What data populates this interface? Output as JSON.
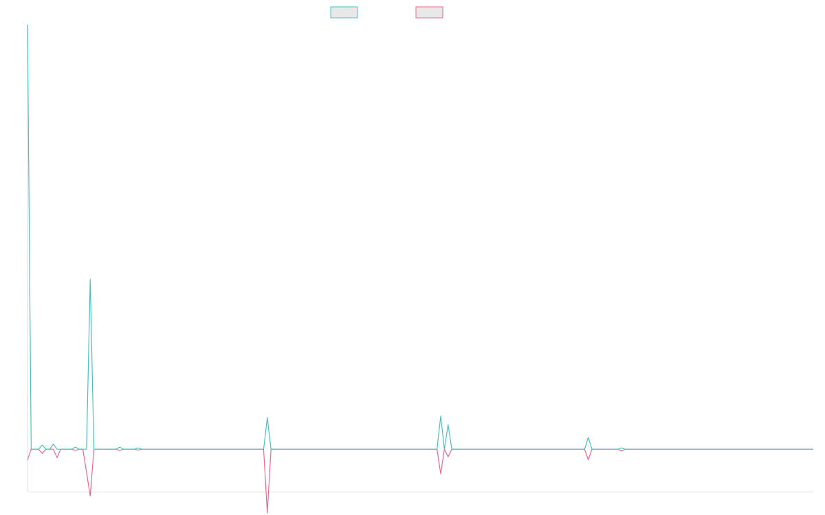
{
  "colors": {
    "teal": "#4bbfbf",
    "pink": "#f0648c",
    "legend_fill": "#e8e8e8",
    "axis": "#dddddd"
  },
  "legend": [
    {
      "name": "",
      "color": "#4bbfbf"
    },
    {
      "name": "",
      "color": "#f0648c"
    }
  ],
  "chart_data": {
    "type": "line",
    "title": "",
    "xlabel": "",
    "ylabel": "",
    "grid": false,
    "legend_position": "top-center",
    "xlim": [
      0,
      213
    ],
    "ylim": [
      -100,
      1000
    ],
    "series": [
      {
        "color": "#4bbfbf",
        "points": [
          [
            0,
            1000
          ],
          [
            1,
            0
          ],
          [
            2,
            0
          ],
          [
            3,
            0
          ],
          [
            4,
            10
          ],
          [
            5,
            0
          ],
          [
            6,
            0
          ],
          [
            7,
            12
          ],
          [
            8,
            0
          ],
          [
            9,
            0
          ],
          [
            10,
            0
          ],
          [
            11,
            0
          ],
          [
            12,
            0
          ],
          [
            13,
            5
          ],
          [
            14,
            0
          ],
          [
            15,
            0
          ],
          [
            16,
            0
          ],
          [
            17,
            400
          ],
          [
            18,
            0
          ],
          [
            19,
            0
          ],
          [
            24,
            0
          ],
          [
            25,
            5
          ],
          [
            26,
            0
          ],
          [
            29,
            0
          ],
          [
            30,
            3
          ],
          [
            31,
            0
          ],
          [
            64,
            0
          ],
          [
            65,
            75
          ],
          [
            66,
            0
          ],
          [
            111,
            0
          ],
          [
            112,
            78
          ],
          [
            113,
            0
          ],
          [
            114,
            58
          ],
          [
            115,
            0
          ],
          [
            151,
            0
          ],
          [
            152,
            28
          ],
          [
            153,
            0
          ],
          [
            160,
            0
          ],
          [
            161,
            3
          ],
          [
            162,
            0
          ],
          [
            213,
            0
          ]
        ]
      },
      {
        "color": "#f0648c",
        "points": [
          [
            0,
            -25
          ],
          [
            1,
            0
          ],
          [
            2,
            0
          ],
          [
            3,
            0
          ],
          [
            4,
            -10
          ],
          [
            5,
            0
          ],
          [
            6,
            0
          ],
          [
            7,
            0
          ],
          [
            8,
            -20
          ],
          [
            9,
            0
          ],
          [
            10,
            0
          ],
          [
            11,
            0
          ],
          [
            12,
            0
          ],
          [
            13,
            -3
          ],
          [
            14,
            0
          ],
          [
            15,
            0
          ],
          [
            16,
            -55
          ],
          [
            17,
            -110
          ],
          [
            18,
            0
          ],
          [
            19,
            0
          ],
          [
            24,
            0
          ],
          [
            25,
            -3
          ],
          [
            26,
            0
          ],
          [
            29,
            0
          ],
          [
            30,
            -2
          ],
          [
            31,
            0
          ],
          [
            64,
            0
          ],
          [
            65,
            -150
          ],
          [
            66,
            0
          ],
          [
            111,
            0
          ],
          [
            112,
            -58
          ],
          [
            113,
            0
          ],
          [
            114,
            -18
          ],
          [
            115,
            0
          ],
          [
            151,
            0
          ],
          [
            152,
            -25
          ],
          [
            153,
            0
          ],
          [
            160,
            0
          ],
          [
            161,
            -4
          ],
          [
            162,
            0
          ],
          [
            213,
            0
          ]
        ]
      }
    ]
  }
}
